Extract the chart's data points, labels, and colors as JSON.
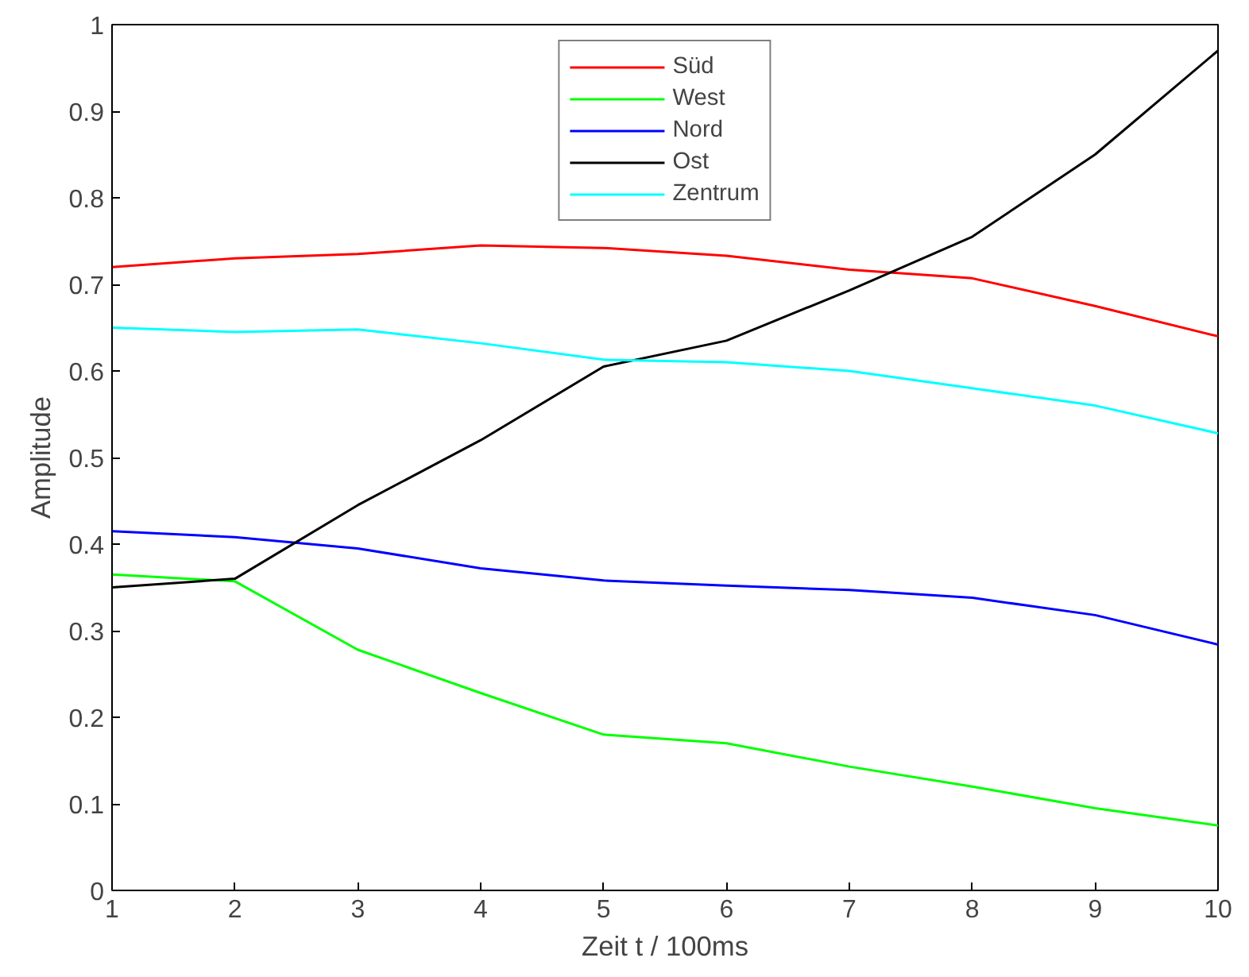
{
  "chart_data": {
    "type": "line",
    "xlabel": "Zeit t / 100ms",
    "ylabel": "Amplitude",
    "x": [
      1,
      2,
      3,
      4,
      5,
      6,
      7,
      8,
      9,
      10
    ],
    "series": [
      {
        "name": "Süd",
        "color": "#ff0000",
        "values": [
          0.72,
          0.73,
          0.735,
          0.745,
          0.742,
          0.733,
          0.717,
          0.707,
          0.675,
          0.64
        ]
      },
      {
        "name": "West",
        "color": "#00ff00",
        "values": [
          0.365,
          0.357,
          0.278,
          0.228,
          0.18,
          0.17,
          0.143,
          0.12,
          0.095,
          0.075
        ]
      },
      {
        "name": "Nord",
        "color": "#0000ff",
        "values": [
          0.415,
          0.408,
          0.395,
          0.372,
          0.358,
          0.352,
          0.347,
          0.338,
          0.318,
          0.284
        ]
      },
      {
        "name": "Ost",
        "color": "#000000",
        "values": [
          0.35,
          0.36,
          0.445,
          0.52,
          0.605,
          0.635,
          0.693,
          0.755,
          0.85,
          0.97
        ]
      },
      {
        "name": "Zentrum",
        "color": "#00ffff",
        "values": [
          0.65,
          0.645,
          0.648,
          0.632,
          0.613,
          0.61,
          0.6,
          0.58,
          0.56,
          0.528
        ]
      }
    ],
    "xlim": [
      1,
      10
    ],
    "xticks": [
      1,
      2,
      3,
      4,
      5,
      6,
      7,
      8,
      9,
      10
    ],
    "ylim": [
      0,
      1
    ],
    "yticks": [
      0,
      0.1,
      0.2,
      0.3,
      0.4,
      0.5,
      0.6,
      0.7,
      0.8,
      0.9,
      1
    ],
    "grid": false,
    "legend": "top",
    "marker": "none",
    "line_style": "solid"
  }
}
